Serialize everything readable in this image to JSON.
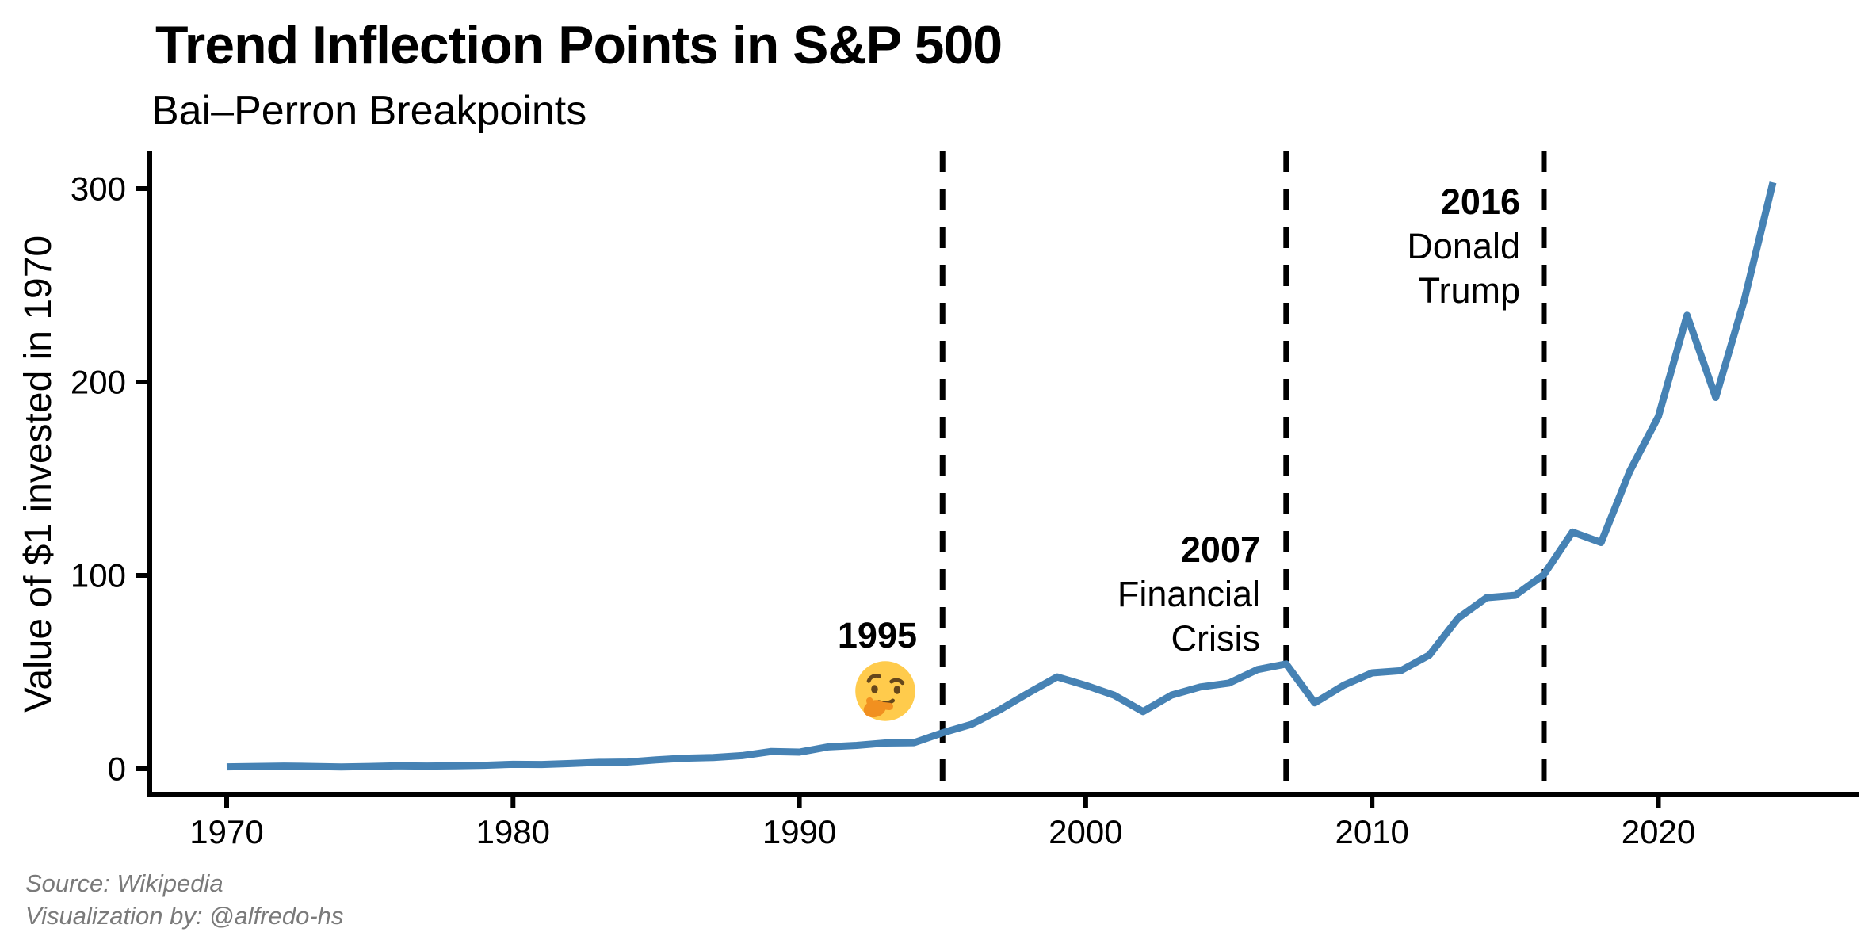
{
  "header": {
    "title": "Trend Inflection Points in S&P 500",
    "subtitle": "Bai–Perron Breakpoints"
  },
  "axes": {
    "y_title": "Value of $1 invested in 1970",
    "y_ticks": [
      {
        "label": "0",
        "v": 0
      },
      {
        "label": "100",
        "v": 100
      },
      {
        "label": "200",
        "v": 200
      },
      {
        "label": "300",
        "v": 300
      }
    ],
    "x_ticks": [
      {
        "label": "1970",
        "v": 1970
      },
      {
        "label": "1980",
        "v": 1980
      },
      {
        "label": "1990",
        "v": 1990
      },
      {
        "label": "2000",
        "v": 2000
      },
      {
        "label": "2010",
        "v": 2010
      },
      {
        "label": "2020",
        "v": 2020
      }
    ]
  },
  "annotations": {
    "a1995": {
      "year": "1995",
      "emoji": "thinking-face"
    },
    "a2007": {
      "year": "2007",
      "l1": "Financial",
      "l2": "Crisis"
    },
    "a2016": {
      "year": "2016",
      "l1": "Donald",
      "l2": "Trump"
    }
  },
  "caption": {
    "l1": "Source: Wikipedia",
    "l2": "Visualization by: @alfredo-hs"
  },
  "colors": {
    "line": "#4682B4",
    "axis": "#000000",
    "breakpoint_line": "#000000",
    "text": "#000000",
    "caption_text": "#7A7A7A",
    "emoji_face": "#FFCB4C",
    "emoji_hand": "#F19020",
    "emoji_features": "#65471B"
  },
  "chart_data": {
    "type": "line",
    "title": "Trend Inflection Points in S&P 500",
    "subtitle": "Bai–Perron Breakpoints",
    "xlabel": "",
    "ylabel": "Value of $1 invested in 1970",
    "legend": "none",
    "grid": false,
    "x_tick_values": [
      1970,
      1980,
      1990,
      2000,
      2010,
      2020
    ],
    "y_tick_values": [
      0,
      100,
      200,
      300
    ],
    "xlim": [
      1967.3,
      2027.0
    ],
    "ylim": [
      -13,
      320
    ],
    "line_color": "#4682B4",
    "breakpoints": [
      1995,
      2007,
      2016
    ],
    "breakpoint_style": "black dashed vertical lines",
    "x": [
      1970,
      1971,
      1972,
      1973,
      1974,
      1975,
      1976,
      1977,
      1978,
      1979,
      1980,
      1981,
      1982,
      1983,
      1984,
      1985,
      1986,
      1987,
      1988,
      1989,
      1990,
      1991,
      1992,
      1993,
      1994,
      1995,
      1996,
      1997,
      1998,
      1999,
      2000,
      2001,
      2002,
      2003,
      2004,
      2005,
      2006,
      2007,
      2008,
      2009,
      2010,
      2011,
      2012,
      2013,
      2014,
      2015,
      2016,
      2017,
      2018,
      2019,
      2020,
      2021,
      2022,
      2023,
      2024
    ],
    "values": [
      1.0,
      1.2,
      1.4,
      1.2,
      0.9,
      1.2,
      1.5,
      1.4,
      1.5,
      1.8,
      2.3,
      2.2,
      2.7,
      3.3,
      3.5,
      4.6,
      5.5,
      5.8,
      6.8,
      8.9,
      8.6,
      11.3,
      12.1,
      13.3,
      13.5,
      18.6,
      22.9,
      30.5,
      39.2,
      47.5,
      43.1,
      38.0,
      29.6,
      38.1,
      42.3,
      44.3,
      51.3,
      54.2,
      34.1,
      43.1,
      49.6,
      50.7,
      58.8,
      77.8,
      88.5,
      89.7,
      100.4,
      122.4,
      117.0,
      153.9,
      182.2,
      234.5,
      192.0,
      242.5,
      303.2
    ]
  }
}
